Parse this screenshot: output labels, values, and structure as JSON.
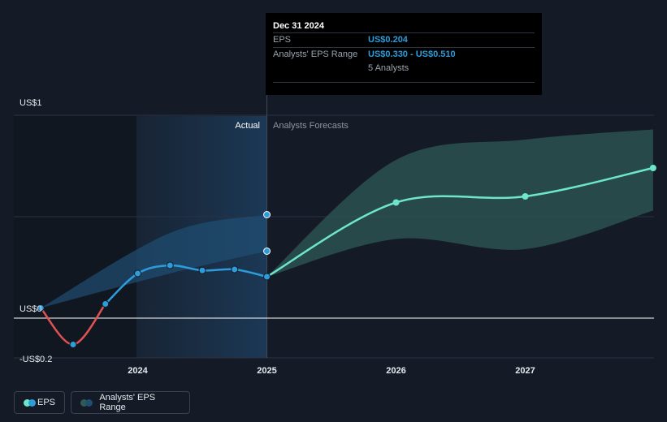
{
  "tooltip": {
    "date": "Dec 31 2024",
    "eps_label": "EPS",
    "eps_value": "US$0.204",
    "range_label": "Analysts' EPS Range",
    "range_value": "US$0.330 - US$0.510",
    "analysts": "5 Analysts"
  },
  "labels": {
    "actual": "Actual",
    "forecast": "Analysts Forecasts"
  },
  "legend": {
    "eps": "EPS",
    "range": "Analysts' EPS Range"
  },
  "colors": {
    "background": "#151b26",
    "eps_actual": "#2d9cdb",
    "eps_negative": "#e05252",
    "eps_forecast": "#6ee6cc",
    "range_past": "#1f4e73",
    "range_forecast": "#2e5a57"
  },
  "chart_data": {
    "type": "line",
    "xlabel": "",
    "ylabel": "",
    "y_tick_labels": [
      "US$1",
      "US$0",
      "-US$0.2"
    ],
    "ylim": [
      -0.2,
      1.0
    ],
    "x_ticks": [
      {
        "label": "2024",
        "x": 2024
      },
      {
        "label": "2025",
        "x": 2025
      },
      {
        "label": "2026",
        "x": 2026
      },
      {
        "label": "2027",
        "x": 2027
      }
    ],
    "xlim": [
      2023.2,
      2027.99
    ],
    "actual_from": 2024.0,
    "divider_x": 2025.0,
    "eps_actual": [
      {
        "x": 2023.25,
        "y": 0.05
      },
      {
        "x": 2023.5,
        "y": -0.13
      },
      {
        "x": 2023.75,
        "y": 0.07
      },
      {
        "x": 2024.0,
        "y": 0.22
      },
      {
        "x": 2024.25,
        "y": 0.26
      },
      {
        "x": 2024.5,
        "y": 0.235
      },
      {
        "x": 2024.75,
        "y": 0.24
      },
      {
        "x": 2025.0,
        "y": 0.204
      }
    ],
    "eps_forecast": [
      {
        "x": 2025.0,
        "y": 0.204
      },
      {
        "x": 2026.0,
        "y": 0.57
      },
      {
        "x": 2027.0,
        "y": 0.6
      },
      {
        "x": 2027.99,
        "y": 0.74
      }
    ],
    "range_past": {
      "x": [
        2023.25,
        2024.25,
        2025.0
      ],
      "low": [
        0.05,
        0.22,
        0.33
      ],
      "high": [
        0.05,
        0.42,
        0.51
      ]
    },
    "range_forecast": {
      "x": [
        2025.0,
        2026.0,
        2027.0,
        2027.99
      ],
      "low": [
        0.204,
        0.39,
        0.34,
        0.53
      ],
      "high": [
        0.204,
        0.78,
        0.88,
        0.93
      ]
    }
  }
}
